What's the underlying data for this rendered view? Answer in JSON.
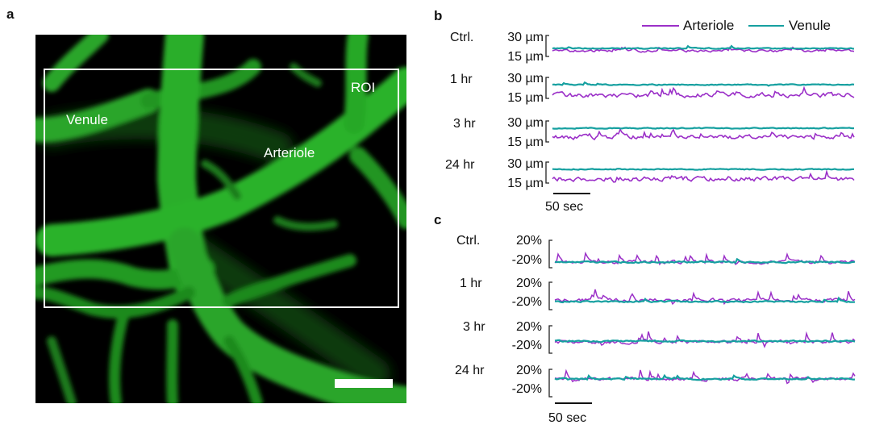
{
  "panel_a": {
    "letter": "a",
    "labels": {
      "venule": "Venule",
      "arteriole": "Arteriole",
      "roi": "ROI"
    }
  },
  "panel_b": {
    "letter": "b",
    "legend": [
      "Arteriole",
      "Venule"
    ],
    "rows": [
      {
        "label": "Ctrl.",
        "top_tick": "30 µm",
        "bottom_tick": "15 µm"
      },
      {
        "label": "1 hr",
        "top_tick": "30 µm",
        "bottom_tick": "15 µm"
      },
      {
        "label": "3 hr",
        "top_tick": "30 µm",
        "bottom_tick": "15 µm"
      },
      {
        "label": "24 hr",
        "top_tick": "30 µm",
        "bottom_tick": "15 µm"
      }
    ],
    "scalebar": "50 sec"
  },
  "panel_c": {
    "letter": "c",
    "rows": [
      {
        "label": "Ctrl.",
        "top_tick": "20%",
        "bottom_tick": "-20%"
      },
      {
        "label": "1 hr",
        "top_tick": "20%",
        "bottom_tick": "-20%"
      },
      {
        "label": "3 hr",
        "top_tick": "20%",
        "bottom_tick": "-20%"
      },
      {
        "label": "24 hr",
        "top_tick": "20%",
        "bottom_tick": "-20%"
      }
    ],
    "scalebar": "50 sec"
  },
  "colors": {
    "arteriole": "#9b30c8",
    "venule": "#16a0a0",
    "vessel": "#2fbf2f"
  }
}
